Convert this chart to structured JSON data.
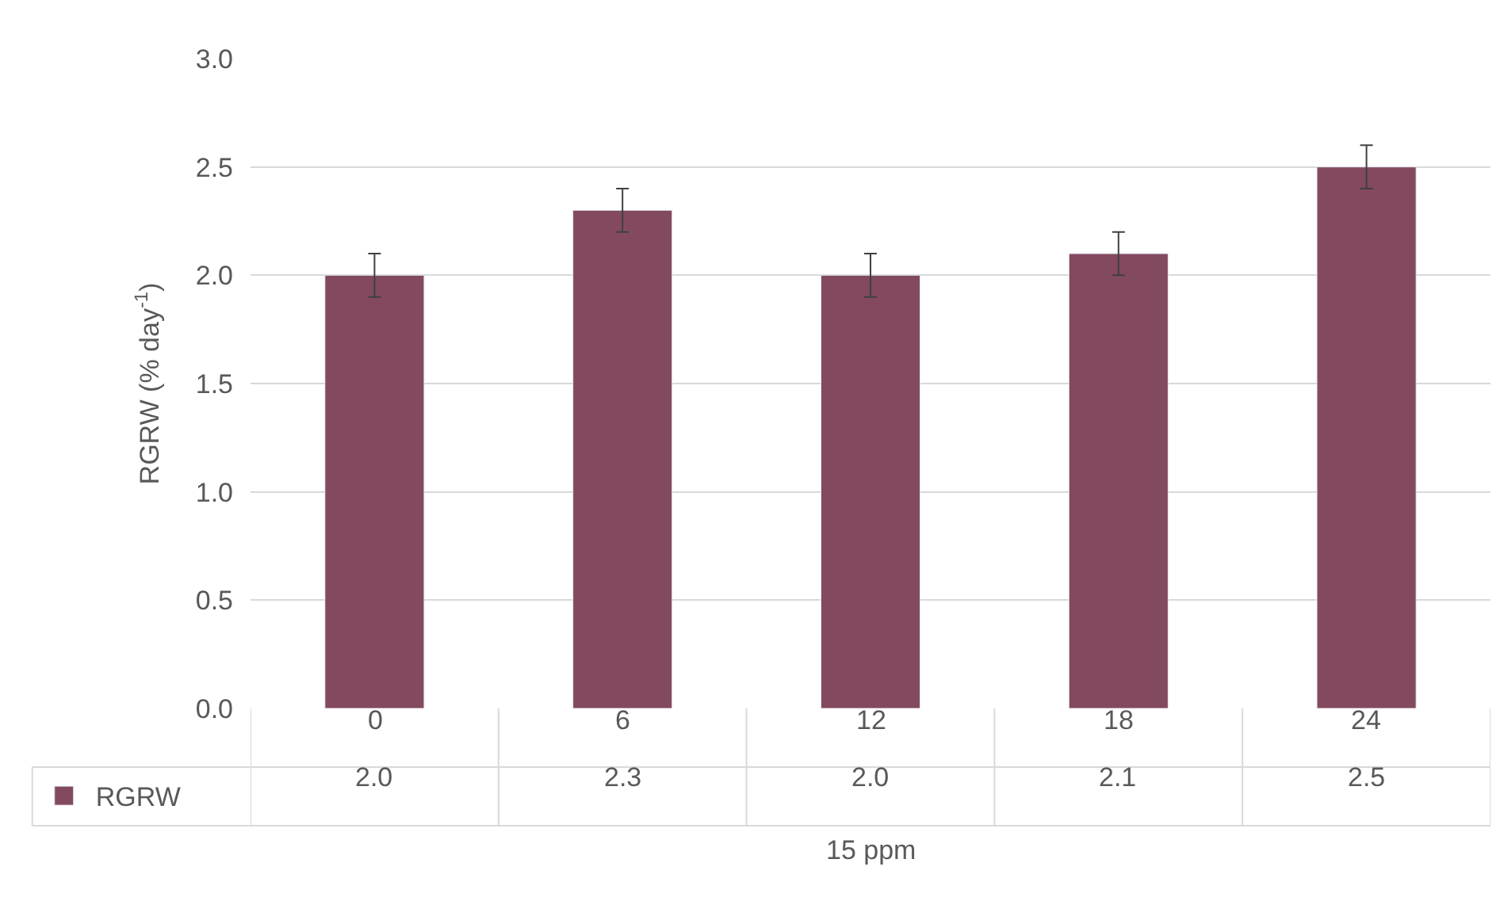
{
  "chart_data": {
    "type": "bar",
    "xlabel": "15 ppm",
    "ylabel": "RGRW (% day$^{-1}$)",
    "categories": [
      "0",
      "6",
      "12",
      "18",
      "24"
    ],
    "series": [
      {
        "name": "RGRW",
        "color": "#834a5f",
        "values": [
          2.0,
          2.3,
          2.0,
          2.1,
          2.5
        ],
        "errors": [
          0.1,
          0.1,
          0.1,
          0.1,
          0.1
        ],
        "value_labels": [
          "2.0",
          "2.3",
          "2.0",
          "2.1",
          "2.5"
        ]
      }
    ],
    "legend": "bottom left",
    "ylim": [
      0,
      3
    ],
    "yticks": [
      {
        "value": 0,
        "label": "0.0"
      },
      {
        "value": 0.5,
        "label": "0.5"
      },
      {
        "value": 1,
        "label": "1.0"
      },
      {
        "value": 1.5,
        "label": "1.5"
      },
      {
        "value": 2,
        "label": "2.0"
      },
      {
        "value": 2.5,
        "label": "2.5"
      },
      {
        "value": 3,
        "label": "3.0"
      }
    ],
    "grid": "y"
  }
}
